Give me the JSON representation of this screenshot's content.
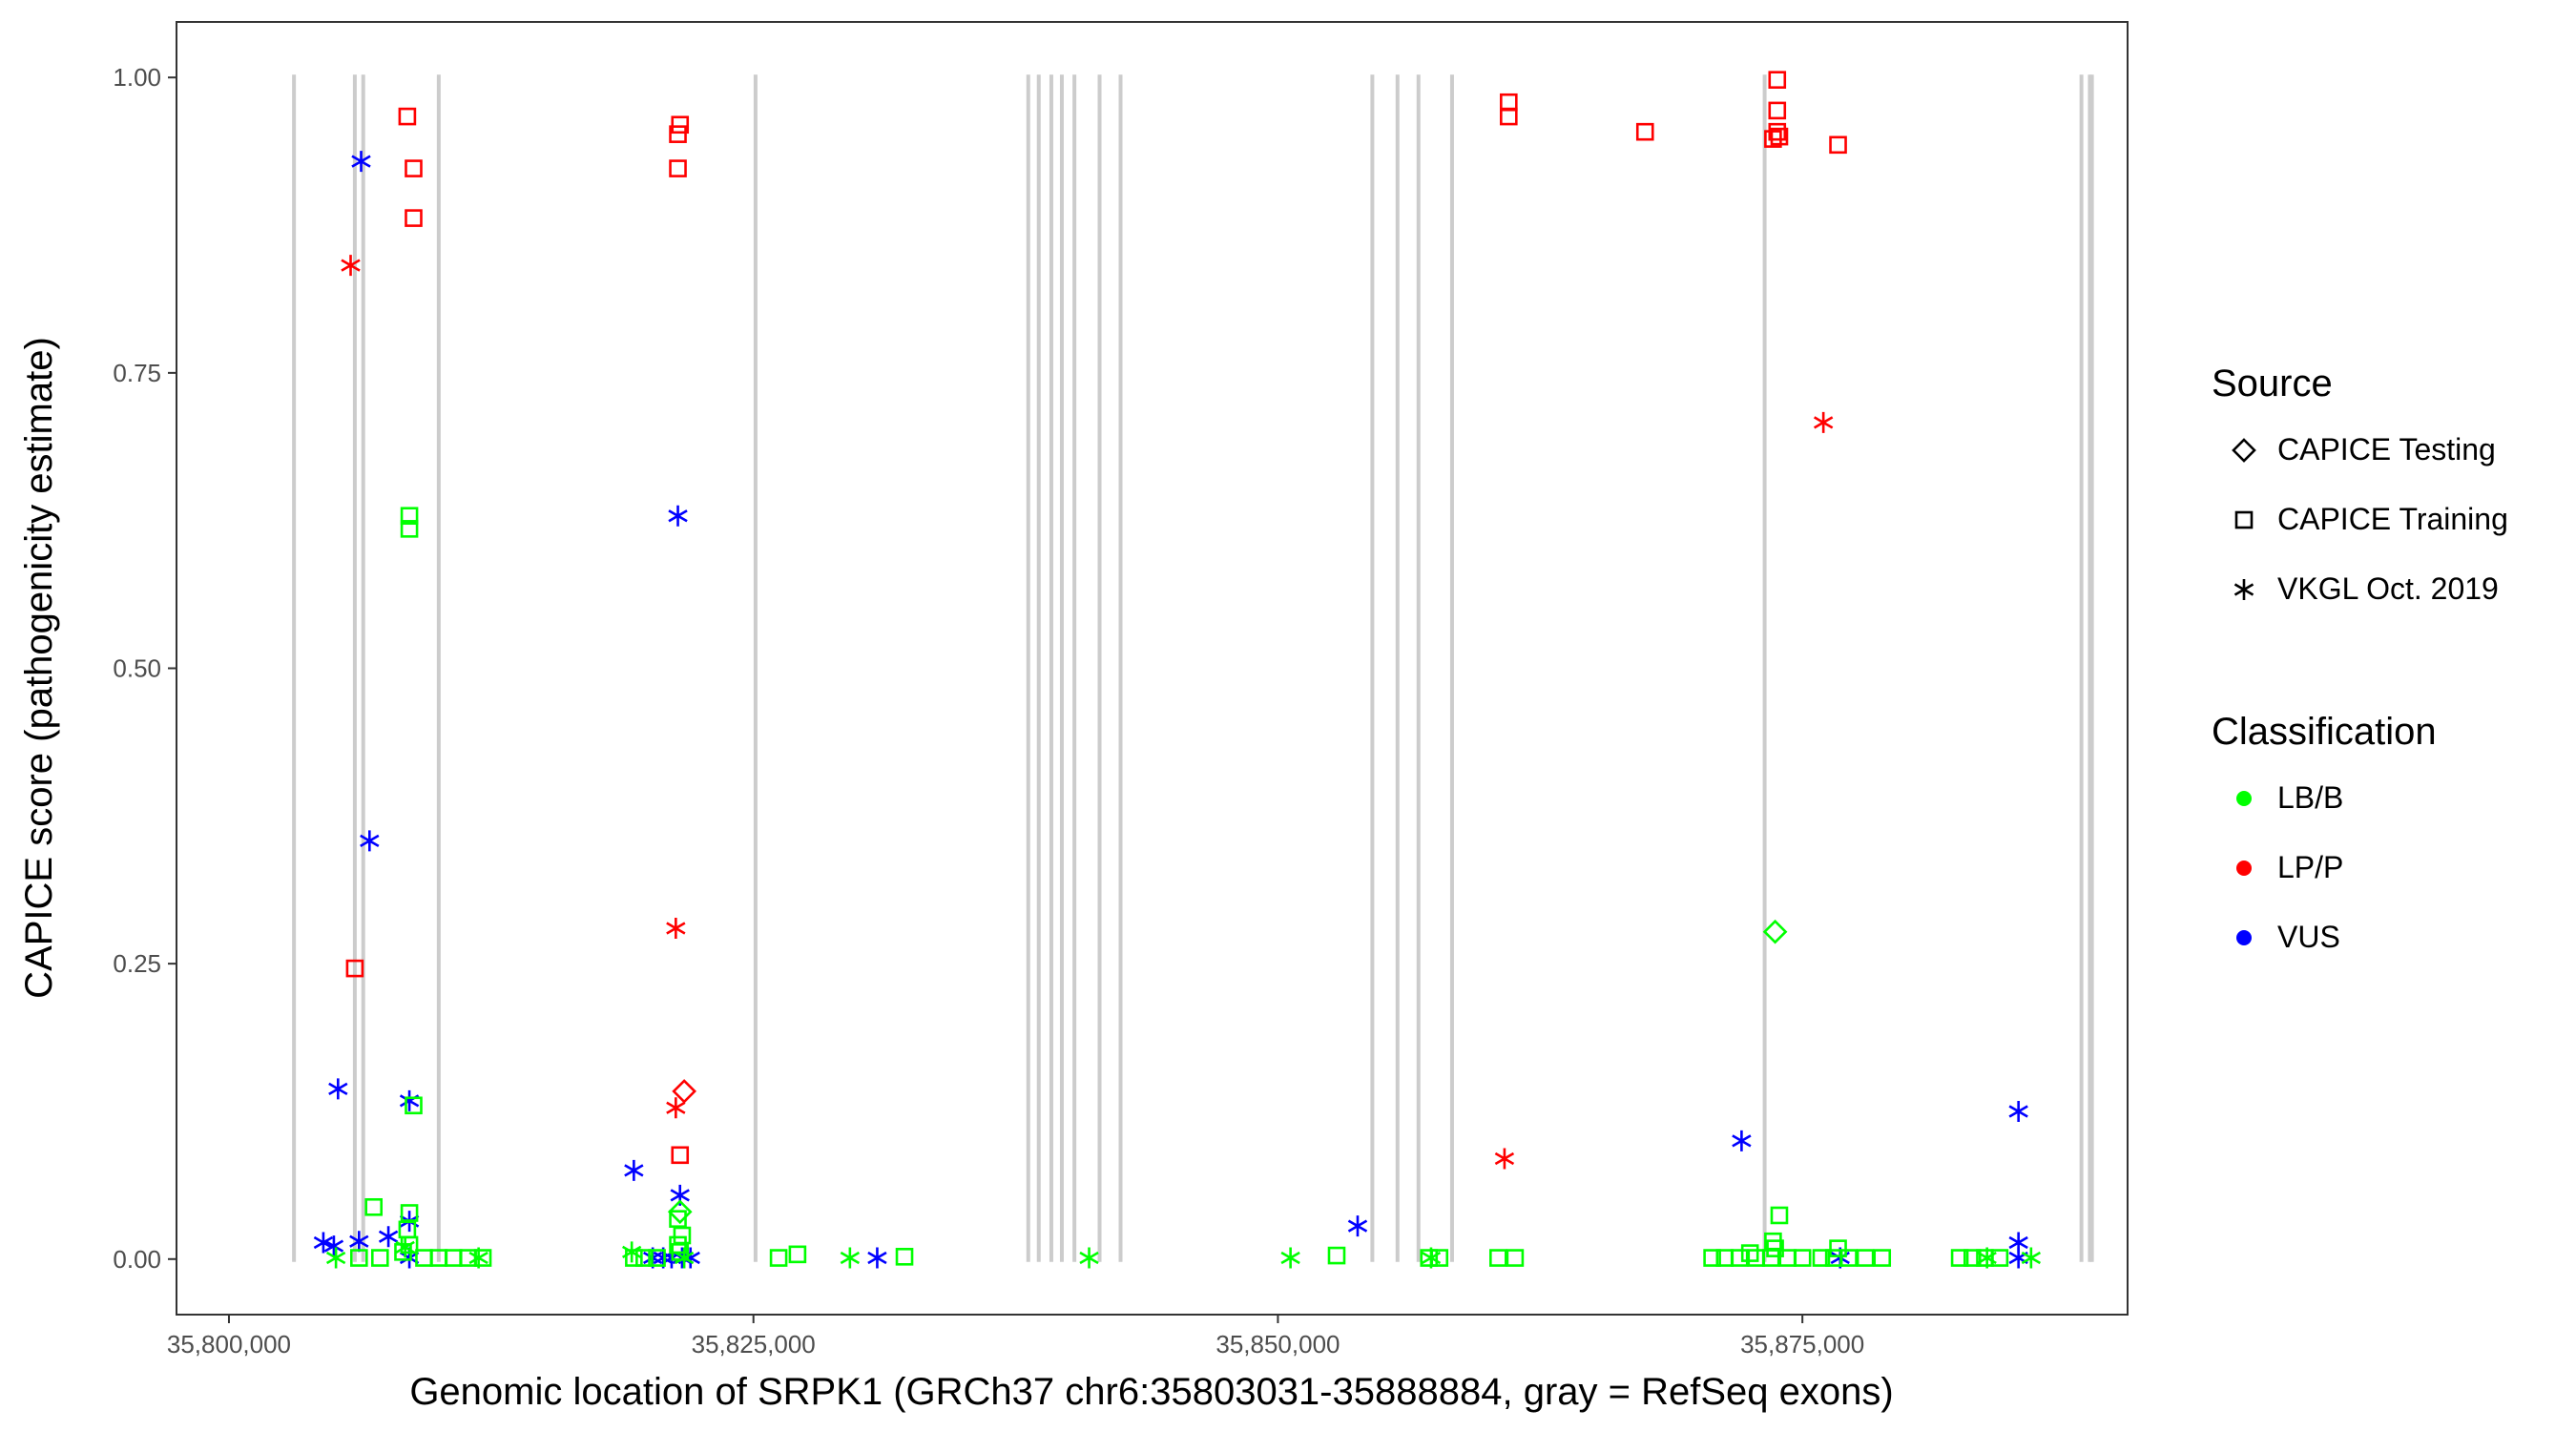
{
  "chart_data": {
    "type": "scatter",
    "xlabel": "Genomic location of SRPK1 (GRCh37 chr6:35803031-35888884, gray = RefSeq exons)",
    "ylabel": "CAPICE score (pathogenicity estimate)",
    "xlim": [
      35797500,
      35890500
    ],
    "ylim": [
      -0.047,
      1.047
    ],
    "x_ticks": [
      35800000,
      35825000,
      35850000,
      35875000
    ],
    "x_tick_labels": [
      "35,800,000",
      "35,825,000",
      "35,850,000",
      "35,875,000"
    ],
    "y_ticks": [
      0,
      0.25,
      0.5,
      0.75,
      1.0
    ],
    "y_tick_labels": [
      "0.00",
      "0.25",
      "0.50",
      "0.75",
      "1.00"
    ],
    "grid": false,
    "exon_color": "#cccccc",
    "exons": [
      35803100,
      35806000,
      35806400,
      35810000,
      35825100,
      35838100,
      35838600,
      35839200,
      35839700,
      35840300,
      35841500,
      35842500,
      35854500,
      35855700,
      35856700,
      35858300,
      35873200,
      35888300,
      35888700,
      35888800
    ],
    "legend": {
      "position": "right",
      "source": {
        "title": "Source",
        "items": [
          {
            "label": "CAPICE Testing",
            "shape": "diamond"
          },
          {
            "label": "CAPICE Training",
            "shape": "square"
          },
          {
            "label": "VKGL Oct. 2019",
            "shape": "asterisk"
          }
        ]
      },
      "classification": {
        "title": "Classification",
        "items": [
          {
            "label": "LB/B",
            "color": "#00ff00"
          },
          {
            "label": "LP/P",
            "color": "#ff0000"
          },
          {
            "label": "VUS",
            "color": "#0000ff"
          }
        ]
      }
    },
    "series": [
      {
        "source": "CAPICE Training",
        "classification": "LP/P",
        "points": [
          [
            35808500,
            0.967
          ],
          [
            35808800,
            0.923
          ],
          [
            35808800,
            0.881
          ],
          [
            35806000,
            0.246
          ],
          [
            35821500,
            0.96
          ],
          [
            35821400,
            0.952
          ],
          [
            35821400,
            0.923
          ],
          [
            35821500,
            0.088
          ],
          [
            35861000,
            0.979
          ],
          [
            35861000,
            0.967
          ],
          [
            35867500,
            0.954
          ],
          [
            35873800,
            0.998
          ],
          [
            35873800,
            0.972
          ],
          [
            35873800,
            0.954
          ],
          [
            35873900,
            0.95
          ],
          [
            35873600,
            0.948
          ],
          [
            35876700,
            0.943
          ]
        ]
      },
      {
        "source": "VKGL Oct. 2019",
        "classification": "LP/P",
        "points": [
          [
            35805800,
            0.841
          ],
          [
            35821300,
            0.28
          ],
          [
            35821300,
            0.128
          ],
          [
            35860800,
            0.085
          ],
          [
            35876000,
            0.708
          ]
        ]
      },
      {
        "source": "CAPICE Testing",
        "classification": "LP/P",
        "points": [
          [
            35821700,
            0.142
          ]
        ]
      },
      {
        "source": "VKGL Oct. 2019",
        "classification": "VUS",
        "points": [
          [
            35806300,
            0.929
          ],
          [
            35806700,
            0.354
          ],
          [
            35805200,
            0.144
          ],
          [
            35808600,
            0.134
          ],
          [
            35808600,
            0.032
          ],
          [
            35807600,
            0.019
          ],
          [
            35806200,
            0.015
          ],
          [
            35804500,
            0.014
          ],
          [
            35805000,
            0.011
          ],
          [
            35808600,
            0.001
          ],
          [
            35821400,
            0.629
          ],
          [
            35819300,
            0.075
          ],
          [
            35821500,
            0.054
          ],
          [
            35820200,
            0.001
          ],
          [
            35820700,
            0.001
          ],
          [
            35821100,
            0.001
          ],
          [
            35821600,
            0.001
          ],
          [
            35822000,
            0.001
          ],
          [
            35830900,
            0.001
          ],
          [
            35853800,
            0.028
          ],
          [
            35872100,
            0.1
          ],
          [
            35876800,
            0.001
          ],
          [
            35885300,
            0.125
          ],
          [
            35885300,
            0.014
          ],
          [
            35885300,
            0.001
          ]
        ]
      },
      {
        "source": "CAPICE Training",
        "classification": "LB/B",
        "points": [
          [
            35808600,
            0.629
          ],
          [
            35808600,
            0.618
          ],
          [
            35808800,
            0.13
          ],
          [
            35806900,
            0.044
          ],
          [
            35808600,
            0.039
          ],
          [
            35808500,
            0.025
          ],
          [
            35808600,
            0.012
          ],
          [
            35808300,
            0.006
          ],
          [
            35806200,
            0.001
          ],
          [
            35807200,
            0.001
          ],
          [
            35809300,
            0.001
          ],
          [
            35810000,
            0.001
          ],
          [
            35810700,
            0.001
          ],
          [
            35811400,
            0.001
          ],
          [
            35812100,
            0.001
          ],
          [
            35821400,
            0.034
          ],
          [
            35821600,
            0.02
          ],
          [
            35821400,
            0.012
          ],
          [
            35821500,
            0.006
          ],
          [
            35819300,
            0.001
          ],
          [
            35819800,
            0.001
          ],
          [
            35820400,
            0.001
          ],
          [
            35826200,
            0.001
          ],
          [
            35827100,
            0.004
          ],
          [
            35832200,
            0.002
          ],
          [
            35852800,
            0.003
          ],
          [
            35857200,
            0.001
          ],
          [
            35857700,
            0.001
          ],
          [
            35860500,
            0.001
          ],
          [
            35861300,
            0.001
          ],
          [
            35873900,
            0.037
          ],
          [
            35873600,
            0.015
          ],
          [
            35873700,
            0.009
          ],
          [
            35872500,
            0.005
          ],
          [
            35876700,
            0.009
          ],
          [
            35870700,
            0.001
          ],
          [
            35871300,
            0.001
          ],
          [
            35872000,
            0.001
          ],
          [
            35872800,
            0.001
          ],
          [
            35873500,
            0.001
          ],
          [
            35874300,
            0.001
          ],
          [
            35875000,
            0.001
          ],
          [
            35875900,
            0.001
          ],
          [
            35876500,
            0.001
          ],
          [
            35877200,
            0.001
          ],
          [
            35878000,
            0.001
          ],
          [
            35878800,
            0.001
          ],
          [
            35882500,
            0.001
          ],
          [
            35883100,
            0.001
          ],
          [
            35883700,
            0.001
          ],
          [
            35884400,
            0.001
          ]
        ]
      },
      {
        "source": "VKGL Oct. 2019",
        "classification": "LB/B",
        "points": [
          [
            35805100,
            0.001
          ],
          [
            35808400,
            0.01
          ],
          [
            35811900,
            0.001
          ],
          [
            35819200,
            0.006
          ],
          [
            35821700,
            0.001
          ],
          [
            35829600,
            0.001
          ],
          [
            35841000,
            0.001
          ],
          [
            35850600,
            0.001
          ],
          [
            35857300,
            0.001
          ],
          [
            35883800,
            0.001
          ],
          [
            35885900,
            0.001
          ]
        ]
      },
      {
        "source": "CAPICE Testing",
        "classification": "LB/B",
        "points": [
          [
            35873700,
            0.277
          ],
          [
            35821500,
            0.04
          ]
        ]
      }
    ]
  }
}
